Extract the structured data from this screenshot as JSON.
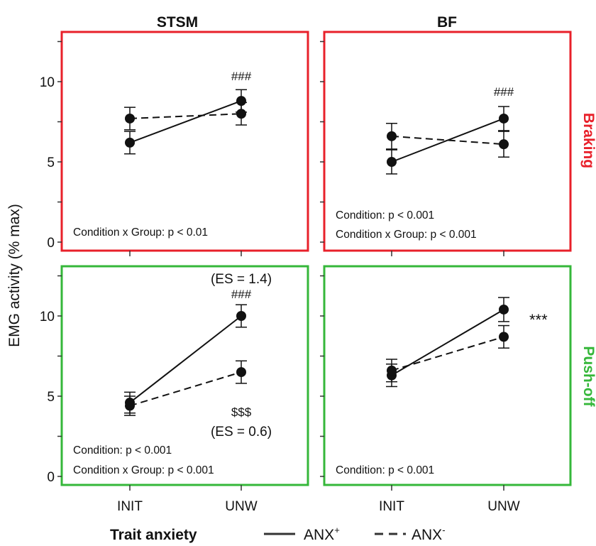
{
  "figure": {
    "y_axis_label": "EMG activity (% max)",
    "legend": {
      "title": "Trait anxiety",
      "items": [
        {
          "label": "ANX",
          "sup": "+",
          "style": "solid"
        },
        {
          "label": "ANX",
          "sup": "-",
          "style": "dashed"
        }
      ]
    },
    "columns": [
      "STSM",
      "BF"
    ],
    "rows": [
      {
        "label": "Braking",
        "color": "#e8202a"
      },
      {
        "label": "Push-off",
        "color": "#35b73a"
      }
    ]
  },
  "chart_data": [
    {
      "type": "line",
      "panel": "STSM - Braking",
      "column": "STSM",
      "row": "Braking",
      "x": [
        "INIT",
        "UNW"
      ],
      "ylim": [
        0,
        12.5
      ],
      "yticks": [
        0,
        5,
        10
      ],
      "series": [
        {
          "name": "ANX+",
          "style": "solid",
          "values": [
            6.2,
            8.8
          ],
          "error": [
            0.7,
            0.7
          ]
        },
        {
          "name": "ANX-",
          "style": "dashed",
          "values": [
            7.7,
            8.0
          ],
          "error": [
            0.7,
            0.7
          ]
        }
      ],
      "annotations": [
        {
          "text": "###",
          "x": "UNW"
        }
      ],
      "stats": [
        "Condition x Group: p < 0.01"
      ]
    },
    {
      "type": "line",
      "panel": "BF - Braking",
      "column": "BF",
      "row": "Braking",
      "x": [
        "INIT",
        "UNW"
      ],
      "ylim": [
        0,
        12.5
      ],
      "yticks": [
        0,
        5,
        10
      ],
      "series": [
        {
          "name": "ANX+",
          "style": "solid",
          "values": [
            5.0,
            7.7
          ],
          "error": [
            0.75,
            0.75
          ]
        },
        {
          "name": "ANX-",
          "style": "dashed",
          "values": [
            6.6,
            6.1
          ],
          "error": [
            0.8,
            0.8
          ]
        }
      ],
      "annotations": [
        {
          "text": "###",
          "x": "UNW"
        }
      ],
      "stats": [
        "Condition: p < 0.001",
        "Condition x Group: p < 0.001"
      ]
    },
    {
      "type": "line",
      "panel": "STSM - Push-off",
      "column": "STSM",
      "row": "Push-off",
      "x": [
        "INIT",
        "UNW"
      ],
      "ylim": [
        0,
        12.5
      ],
      "yticks": [
        0,
        5,
        10
      ],
      "series": [
        {
          "name": "ANX+",
          "style": "solid",
          "values": [
            4.6,
            10.0
          ],
          "error": [
            0.65,
            0.7
          ]
        },
        {
          "name": "ANX-",
          "style": "dashed",
          "values": [
            4.4,
            6.5
          ],
          "error": [
            0.6,
            0.7
          ]
        }
      ],
      "annotations": [
        {
          "text": "(ES = 1.4)",
          "x": "UNW"
        },
        {
          "text": "###",
          "x": "UNW"
        },
        {
          "text": "$$$",
          "x": "UNW"
        },
        {
          "text": "(ES = 0.6)",
          "x": "UNW"
        }
      ],
      "stats": [
        "Condition: p < 0.001",
        "Condition x Group: p < 0.001"
      ]
    },
    {
      "type": "line",
      "panel": "BF - Push-off",
      "column": "BF",
      "row": "Push-off",
      "x": [
        "INIT",
        "UNW"
      ],
      "ylim": [
        0,
        12.5
      ],
      "yticks": [
        0,
        5,
        10
      ],
      "series": [
        {
          "name": "ANX+",
          "style": "solid",
          "values": [
            6.3,
            10.4
          ],
          "error": [
            0.7,
            0.75
          ]
        },
        {
          "name": "ANX-",
          "style": "dashed",
          "values": [
            6.6,
            8.7
          ],
          "error": [
            0.7,
            0.7
          ]
        }
      ],
      "annotations": [
        {
          "text": "***",
          "x": "UNW"
        }
      ],
      "stats": [
        "Condition: p < 0.001"
      ]
    }
  ]
}
